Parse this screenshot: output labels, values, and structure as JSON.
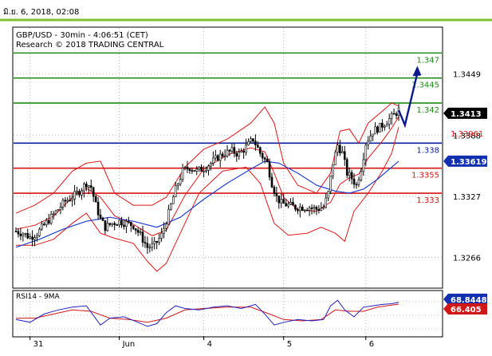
{
  "window": {
    "timestamp": "มิ.ย. 6, 2018, 02:08"
  },
  "chart_header": {
    "symbol_line": "GBP/USD - 30min - 4:06:51 (CET)",
    "source_line": "Research © 2018 TRADING CENTRAL"
  },
  "colors": {
    "accent": "#7ec234",
    "resistance": "#1e8c14",
    "pivot": "#0a1e9c",
    "support": "#d61414",
    "bollinger": "#e01818",
    "moving_average": "#2040d0",
    "candles": "#000000",
    "rsi": "#2020c0",
    "rsi_ma": "#d01818",
    "arrow": "#0a1a8c"
  },
  "chart_data": {
    "type": "line",
    "title": "GBP/USD - 30min - 4:06:51 (CET)",
    "subtitle": "Research © 2018 TRADING CENTRAL",
    "xlabel": "",
    "ylabel": "",
    "x_ticks": [
      "31",
      "Jun",
      "4",
      "5",
      "6"
    ],
    "y_ticks": [
      "1.3449",
      "1.3388",
      "1.3327",
      "1.3266"
    ],
    "ylim": [
      1.3236,
      1.3495
    ],
    "levels": [
      {
        "label": "1.347",
        "value": 1.347,
        "kind": "resistance"
      },
      {
        "label": "1.3445",
        "value": 1.3445,
        "kind": "resistance"
      },
      {
        "label": "1.342",
        "value": 1.342,
        "kind": "resistance"
      },
      {
        "label": "1.338",
        "value": 1.338,
        "kind": "pivot"
      },
      {
        "label": "1.3355",
        "value": 1.3355,
        "kind": "support"
      },
      {
        "label": "1.333",
        "value": 1.333,
        "kind": "support"
      }
    ],
    "price_badges": [
      {
        "label": "1.3413",
        "value": 1.3413,
        "style": "last"
      },
      {
        "label": "1.33961",
        "value": 1.3396,
        "style": "bollinger"
      },
      {
        "label": "1.33619",
        "value": 1.3362,
        "style": "average"
      }
    ],
    "price_series": [
      {
        "x": 0,
        "y": 1.3292
      },
      {
        "x": 3,
        "y": 1.329
      },
      {
        "x": 6,
        "y": 1.3286
      },
      {
        "x": 9,
        "y": 1.329
      },
      {
        "x": 12,
        "y": 1.3298
      },
      {
        "x": 15,
        "y": 1.3306
      },
      {
        "x": 18,
        "y": 1.3314
      },
      {
        "x": 21,
        "y": 1.3322
      },
      {
        "x": 24,
        "y": 1.3326
      },
      {
        "x": 27,
        "y": 1.3332
      },
      {
        "x": 30,
        "y": 1.334
      },
      {
        "x": 32,
        "y": 1.3336
      },
      {
        "x": 34,
        "y": 1.3318
      },
      {
        "x": 36,
        "y": 1.3304
      },
      {
        "x": 38,
        "y": 1.3296
      },
      {
        "x": 41,
        "y": 1.33
      },
      {
        "x": 44,
        "y": 1.3302
      },
      {
        "x": 47,
        "y": 1.33
      },
      {
        "x": 50,
        "y": 1.3298
      },
      {
        "x": 53,
        "y": 1.3288
      },
      {
        "x": 56,
        "y": 1.3276
      },
      {
        "x": 59,
        "y": 1.3278
      },
      {
        "x": 62,
        "y": 1.3288
      },
      {
        "x": 65,
        "y": 1.331
      },
      {
        "x": 68,
        "y": 1.3334
      },
      {
        "x": 71,
        "y": 1.3352
      },
      {
        "x": 74,
        "y": 1.3356
      },
      {
        "x": 77,
        "y": 1.3352
      },
      {
        "x": 80,
        "y": 1.3355
      },
      {
        "x": 83,
        "y": 1.336
      },
      {
        "x": 86,
        "y": 1.3366
      },
      {
        "x": 89,
        "y": 1.337
      },
      {
        "x": 92,
        "y": 1.3372
      },
      {
        "x": 95,
        "y": 1.3369
      },
      {
        "x": 98,
        "y": 1.3376
      },
      {
        "x": 101,
        "y": 1.3384
      },
      {
        "x": 104,
        "y": 1.337
      },
      {
        "x": 107,
        "y": 1.336
      },
      {
        "x": 109,
        "y": 1.334
      },
      {
        "x": 111,
        "y": 1.3326
      },
      {
        "x": 113,
        "y": 1.332
      },
      {
        "x": 116,
        "y": 1.3318
      },
      {
        "x": 119,
        "y": 1.3316
      },
      {
        "x": 122,
        "y": 1.3316
      },
      {
        "x": 125,
        "y": 1.3316
      },
      {
        "x": 128,
        "y": 1.3314
      },
      {
        "x": 131,
        "y": 1.3316
      },
      {
        "x": 133,
        "y": 1.333
      },
      {
        "x": 135,
        "y": 1.336
      },
      {
        "x": 137,
        "y": 1.3378
      },
      {
        "x": 139,
        "y": 1.337
      },
      {
        "x": 141,
        "y": 1.335
      },
      {
        "x": 143,
        "y": 1.3345
      },
      {
        "x": 145,
        "y": 1.3338
      },
      {
        "x": 147,
        "y": 1.3355
      },
      {
        "x": 149,
        "y": 1.338
      },
      {
        "x": 152,
        "y": 1.3392
      },
      {
        "x": 155,
        "y": 1.3396
      },
      {
        "x": 158,
        "y": 1.3402
      },
      {
        "x": 161,
        "y": 1.3408
      },
      {
        "x": 163,
        "y": 1.3413
      }
    ],
    "bollinger_upper": [
      {
        "x": 0,
        "y": 1.331
      },
      {
        "x": 8,
        "y": 1.3318
      },
      {
        "x": 16,
        "y": 1.333
      },
      {
        "x": 24,
        "y": 1.3352
      },
      {
        "x": 30,
        "y": 1.336
      },
      {
        "x": 36,
        "y": 1.3362
      },
      {
        "x": 42,
        "y": 1.333
      },
      {
        "x": 50,
        "y": 1.3318
      },
      {
        "x": 58,
        "y": 1.3318
      },
      {
        "x": 64,
        "y": 1.3326
      },
      {
        "x": 72,
        "y": 1.3356
      },
      {
        "x": 80,
        "y": 1.3374
      },
      {
        "x": 90,
        "y": 1.3384
      },
      {
        "x": 100,
        "y": 1.34
      },
      {
        "x": 106,
        "y": 1.3416
      },
      {
        "x": 110,
        "y": 1.34
      },
      {
        "x": 114,
        "y": 1.336
      },
      {
        "x": 120,
        "y": 1.3338
      },
      {
        "x": 128,
        "y": 1.333
      },
      {
        "x": 134,
        "y": 1.335
      },
      {
        "x": 138,
        "y": 1.3392
      },
      {
        "x": 142,
        "y": 1.3394
      },
      {
        "x": 146,
        "y": 1.338
      },
      {
        "x": 150,
        "y": 1.34
      },
      {
        "x": 156,
        "y": 1.3412
      },
      {
        "x": 160,
        "y": 1.342
      },
      {
        "x": 163,
        "y": 1.3417
      }
    ],
    "bollinger_lower": [
      {
        "x": 0,
        "y": 1.3278
      },
      {
        "x": 8,
        "y": 1.3278
      },
      {
        "x": 16,
        "y": 1.3284
      },
      {
        "x": 24,
        "y": 1.33
      },
      {
        "x": 30,
        "y": 1.331
      },
      {
        "x": 36,
        "y": 1.329
      },
      {
        "x": 42,
        "y": 1.3285
      },
      {
        "x": 50,
        "y": 1.328
      },
      {
        "x": 56,
        "y": 1.3262
      },
      {
        "x": 60,
        "y": 1.3252
      },
      {
        "x": 64,
        "y": 1.326
      },
      {
        "x": 70,
        "y": 1.329
      },
      {
        "x": 78,
        "y": 1.333
      },
      {
        "x": 88,
        "y": 1.3352
      },
      {
        "x": 98,
        "y": 1.3356
      },
      {
        "x": 104,
        "y": 1.334
      },
      {
        "x": 110,
        "y": 1.33
      },
      {
        "x": 116,
        "y": 1.3288
      },
      {
        "x": 124,
        "y": 1.329
      },
      {
        "x": 130,
        "y": 1.3296
      },
      {
        "x": 136,
        "y": 1.329
      },
      {
        "x": 140,
        "y": 1.3282
      },
      {
        "x": 144,
        "y": 1.3312
      },
      {
        "x": 150,
        "y": 1.333
      },
      {
        "x": 156,
        "y": 1.3352
      },
      {
        "x": 160,
        "y": 1.337
      },
      {
        "x": 163,
        "y": 1.3396
      }
    ],
    "moving_average": [
      {
        "x": 0,
        "y": 1.3276
      },
      {
        "x": 10,
        "y": 1.3284
      },
      {
        "x": 20,
        "y": 1.3294
      },
      {
        "x": 30,
        "y": 1.3302
      },
      {
        "x": 40,
        "y": 1.3306
      },
      {
        "x": 50,
        "y": 1.3302
      },
      {
        "x": 60,
        "y": 1.3296
      },
      {
        "x": 70,
        "y": 1.3306
      },
      {
        "x": 80,
        "y": 1.3324
      },
      {
        "x": 90,
        "y": 1.334
      },
      {
        "x": 100,
        "y": 1.3354
      },
      {
        "x": 106,
        "y": 1.3362
      },
      {
        "x": 112,
        "y": 1.336
      },
      {
        "x": 120,
        "y": 1.335
      },
      {
        "x": 128,
        "y": 1.3338
      },
      {
        "x": 136,
        "y": 1.3332
      },
      {
        "x": 142,
        "y": 1.333
      },
      {
        "x": 148,
        "y": 1.3334
      },
      {
        "x": 154,
        "y": 1.3344
      },
      {
        "x": 160,
        "y": 1.3356
      },
      {
        "x": 163,
        "y": 1.3362
      }
    ],
    "forecast_arrow": [
      {
        "x": 163,
        "y": 1.3413
      },
      {
        "x": 166,
        "y": 1.3398
      },
      {
        "x": 172,
        "y": 1.345
      }
    ],
    "rsi": {
      "label": "RSI14 - 9MA",
      "ylim": [
        20,
        85
      ],
      "badges": [
        {
          "label": "68.8448",
          "value": 68.8448,
          "series": "RSI"
        },
        {
          "label": "66.405",
          "value": 66.405,
          "series": "MA"
        }
      ],
      "series": [
        {
          "x": 0,
          "y": 44
        },
        {
          "x": 6,
          "y": 40
        },
        {
          "x": 12,
          "y": 52
        },
        {
          "x": 18,
          "y": 58
        },
        {
          "x": 24,
          "y": 62
        },
        {
          "x": 30,
          "y": 64
        },
        {
          "x": 33,
          "y": 50
        },
        {
          "x": 36,
          "y": 36
        },
        {
          "x": 40,
          "y": 46
        },
        {
          "x": 46,
          "y": 48
        },
        {
          "x": 52,
          "y": 40
        },
        {
          "x": 56,
          "y": 34
        },
        {
          "x": 60,
          "y": 38
        },
        {
          "x": 64,
          "y": 54
        },
        {
          "x": 68,
          "y": 64
        },
        {
          "x": 72,
          "y": 60
        },
        {
          "x": 78,
          "y": 58
        },
        {
          "x": 84,
          "y": 62
        },
        {
          "x": 90,
          "y": 64
        },
        {
          "x": 96,
          "y": 60
        },
        {
          "x": 102,
          "y": 66
        },
        {
          "x": 106,
          "y": 52
        },
        {
          "x": 110,
          "y": 36
        },
        {
          "x": 114,
          "y": 40
        },
        {
          "x": 120,
          "y": 44
        },
        {
          "x": 126,
          "y": 42
        },
        {
          "x": 131,
          "y": 44
        },
        {
          "x": 134,
          "y": 64
        },
        {
          "x": 137,
          "y": 72
        },
        {
          "x": 140,
          "y": 58
        },
        {
          "x": 144,
          "y": 48
        },
        {
          "x": 148,
          "y": 62
        },
        {
          "x": 152,
          "y": 64
        },
        {
          "x": 156,
          "y": 66
        },
        {
          "x": 160,
          "y": 67
        },
        {
          "x": 163,
          "y": 69
        }
      ],
      "ma": [
        {
          "x": 0,
          "y": 46
        },
        {
          "x": 8,
          "y": 46
        },
        {
          "x": 16,
          "y": 52
        },
        {
          "x": 24,
          "y": 58
        },
        {
          "x": 32,
          "y": 56
        },
        {
          "x": 40,
          "y": 46
        },
        {
          "x": 48,
          "y": 44
        },
        {
          "x": 56,
          "y": 40
        },
        {
          "x": 64,
          "y": 46
        },
        {
          "x": 72,
          "y": 58
        },
        {
          "x": 80,
          "y": 60
        },
        {
          "x": 90,
          "y": 62
        },
        {
          "x": 100,
          "y": 62
        },
        {
          "x": 108,
          "y": 52
        },
        {
          "x": 114,
          "y": 44
        },
        {
          "x": 122,
          "y": 42
        },
        {
          "x": 130,
          "y": 44
        },
        {
          "x": 136,
          "y": 58
        },
        {
          "x": 142,
          "y": 56
        },
        {
          "x": 148,
          "y": 56
        },
        {
          "x": 154,
          "y": 62
        },
        {
          "x": 160,
          "y": 65
        },
        {
          "x": 163,
          "y": 66.4
        }
      ]
    }
  }
}
